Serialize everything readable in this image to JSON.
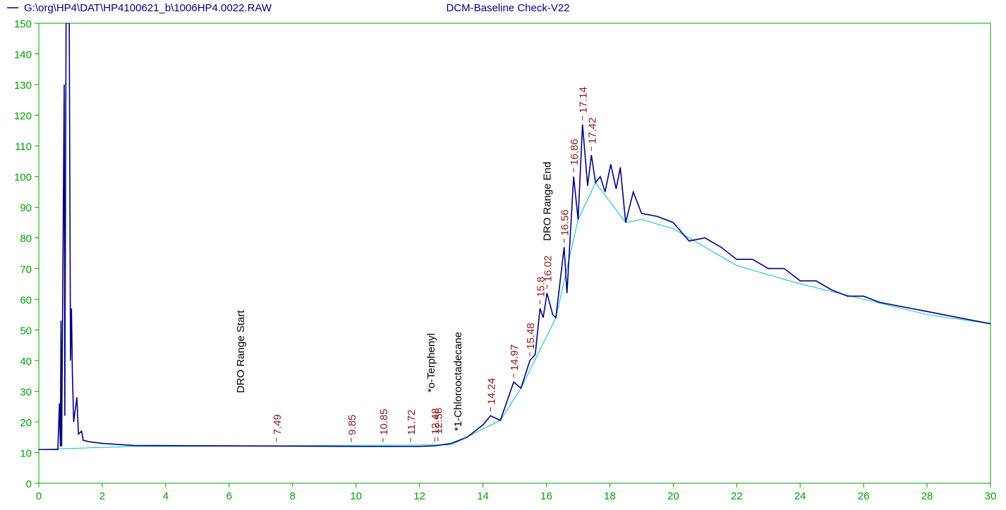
{
  "chart_data": {
    "type": "line",
    "title": "DCM-Baseline Check-V22",
    "xlim": [
      0,
      30
    ],
    "ylim": [
      0,
      150
    ],
    "xticks": [
      0,
      2,
      4,
      6,
      8,
      10,
      12,
      14,
      16,
      18,
      20,
      22,
      24,
      26,
      28,
      30
    ],
    "yticks": [
      0,
      10,
      20,
      30,
      40,
      50,
      60,
      70,
      80,
      90,
      100,
      110,
      120,
      130,
      140,
      150
    ],
    "axis_color": "#00a000",
    "series": [
      {
        "name": "G:\\org\\HP4\\DAT\\HP4100621_b\\1006HP4.0022.RAW",
        "color": "#000080",
        "x": [
          0,
          0.6,
          0.65,
          0.68,
          0.7,
          0.72,
          0.8,
          0.82,
          0.86,
          0.92,
          0.96,
          1.0,
          1.03,
          1.06,
          1.1,
          1.2,
          1.25,
          1.35,
          1.4,
          1.6,
          2,
          3,
          6,
          10,
          12,
          12.5,
          13,
          13.5,
          14,
          14.24,
          14.55,
          14.97,
          15.2,
          15.48,
          15.65,
          15.8,
          15.9,
          16.02,
          16.2,
          16.3,
          16.56,
          16.65,
          16.86,
          17.0,
          17.14,
          17.3,
          17.42,
          17.55,
          17.7,
          17.85,
          18.03,
          18.2,
          18.33,
          18.5,
          18.74,
          19.0,
          19.5,
          20.0,
          20.5,
          21.0,
          21.5,
          22,
          22.5,
          23,
          23.5,
          24,
          24.5,
          25,
          25.5,
          26,
          26.5,
          27,
          27.5,
          28,
          28.5,
          29,
          29.5,
          30
        ],
        "values": [
          11,
          11,
          26,
          12,
          53,
          12,
          130,
          22,
          150,
          150,
          150,
          40,
          57,
          35,
          20,
          28,
          16,
          17,
          14,
          13.5,
          13,
          12.3,
          12.2,
          12,
          12,
          12.2,
          13,
          15,
          19,
          22,
          20.5,
          33,
          31,
          40,
          42,
          57,
          54,
          62,
          55,
          54,
          77,
          62,
          100,
          86,
          117,
          97,
          107,
          98,
          100,
          95,
          104,
          96,
          103,
          85,
          95,
          88,
          87,
          85,
          79,
          80,
          77,
          73,
          73,
          70,
          70,
          66,
          66,
          63,
          61,
          61,
          59,
          58,
          57,
          56,
          55,
          54,
          53,
          52
        ]
      },
      {
        "color": "#00c0c0",
        "x": [
          0,
          3,
          13,
          14.55,
          15.2,
          16.3,
          17.0,
          17.55,
          18.5,
          19,
          20,
          22,
          24,
          26,
          28,
          30
        ],
        "values": [
          11,
          12,
          12.5,
          20.5,
          31,
          54,
          86,
          98,
          85,
          86,
          83,
          71,
          65,
          60,
          55,
          52
        ]
      }
    ],
    "peaks": [
      7.49,
      9.85,
      10.85,
      11.72,
      12.48,
      12.58,
      14.24,
      14.97,
      15.48,
      15.8,
      16.02,
      16.56,
      16.86,
      17.14,
      17.42
    ],
    "peak_color": "#8b1a1a",
    "annotations": [
      {
        "text": "DRO Range Start",
        "x": 6.34,
        "y": 29.4
      },
      {
        "text": "*o-Terphenyl",
        "x": 12.34,
        "y": 29.6
      },
      {
        "text": "*1-Chlorooctadecane",
        "x": 13.19,
        "y": 17
      },
      {
        "text": "DRO Range End",
        "x": 16.0,
        "y": 79
      }
    ]
  }
}
